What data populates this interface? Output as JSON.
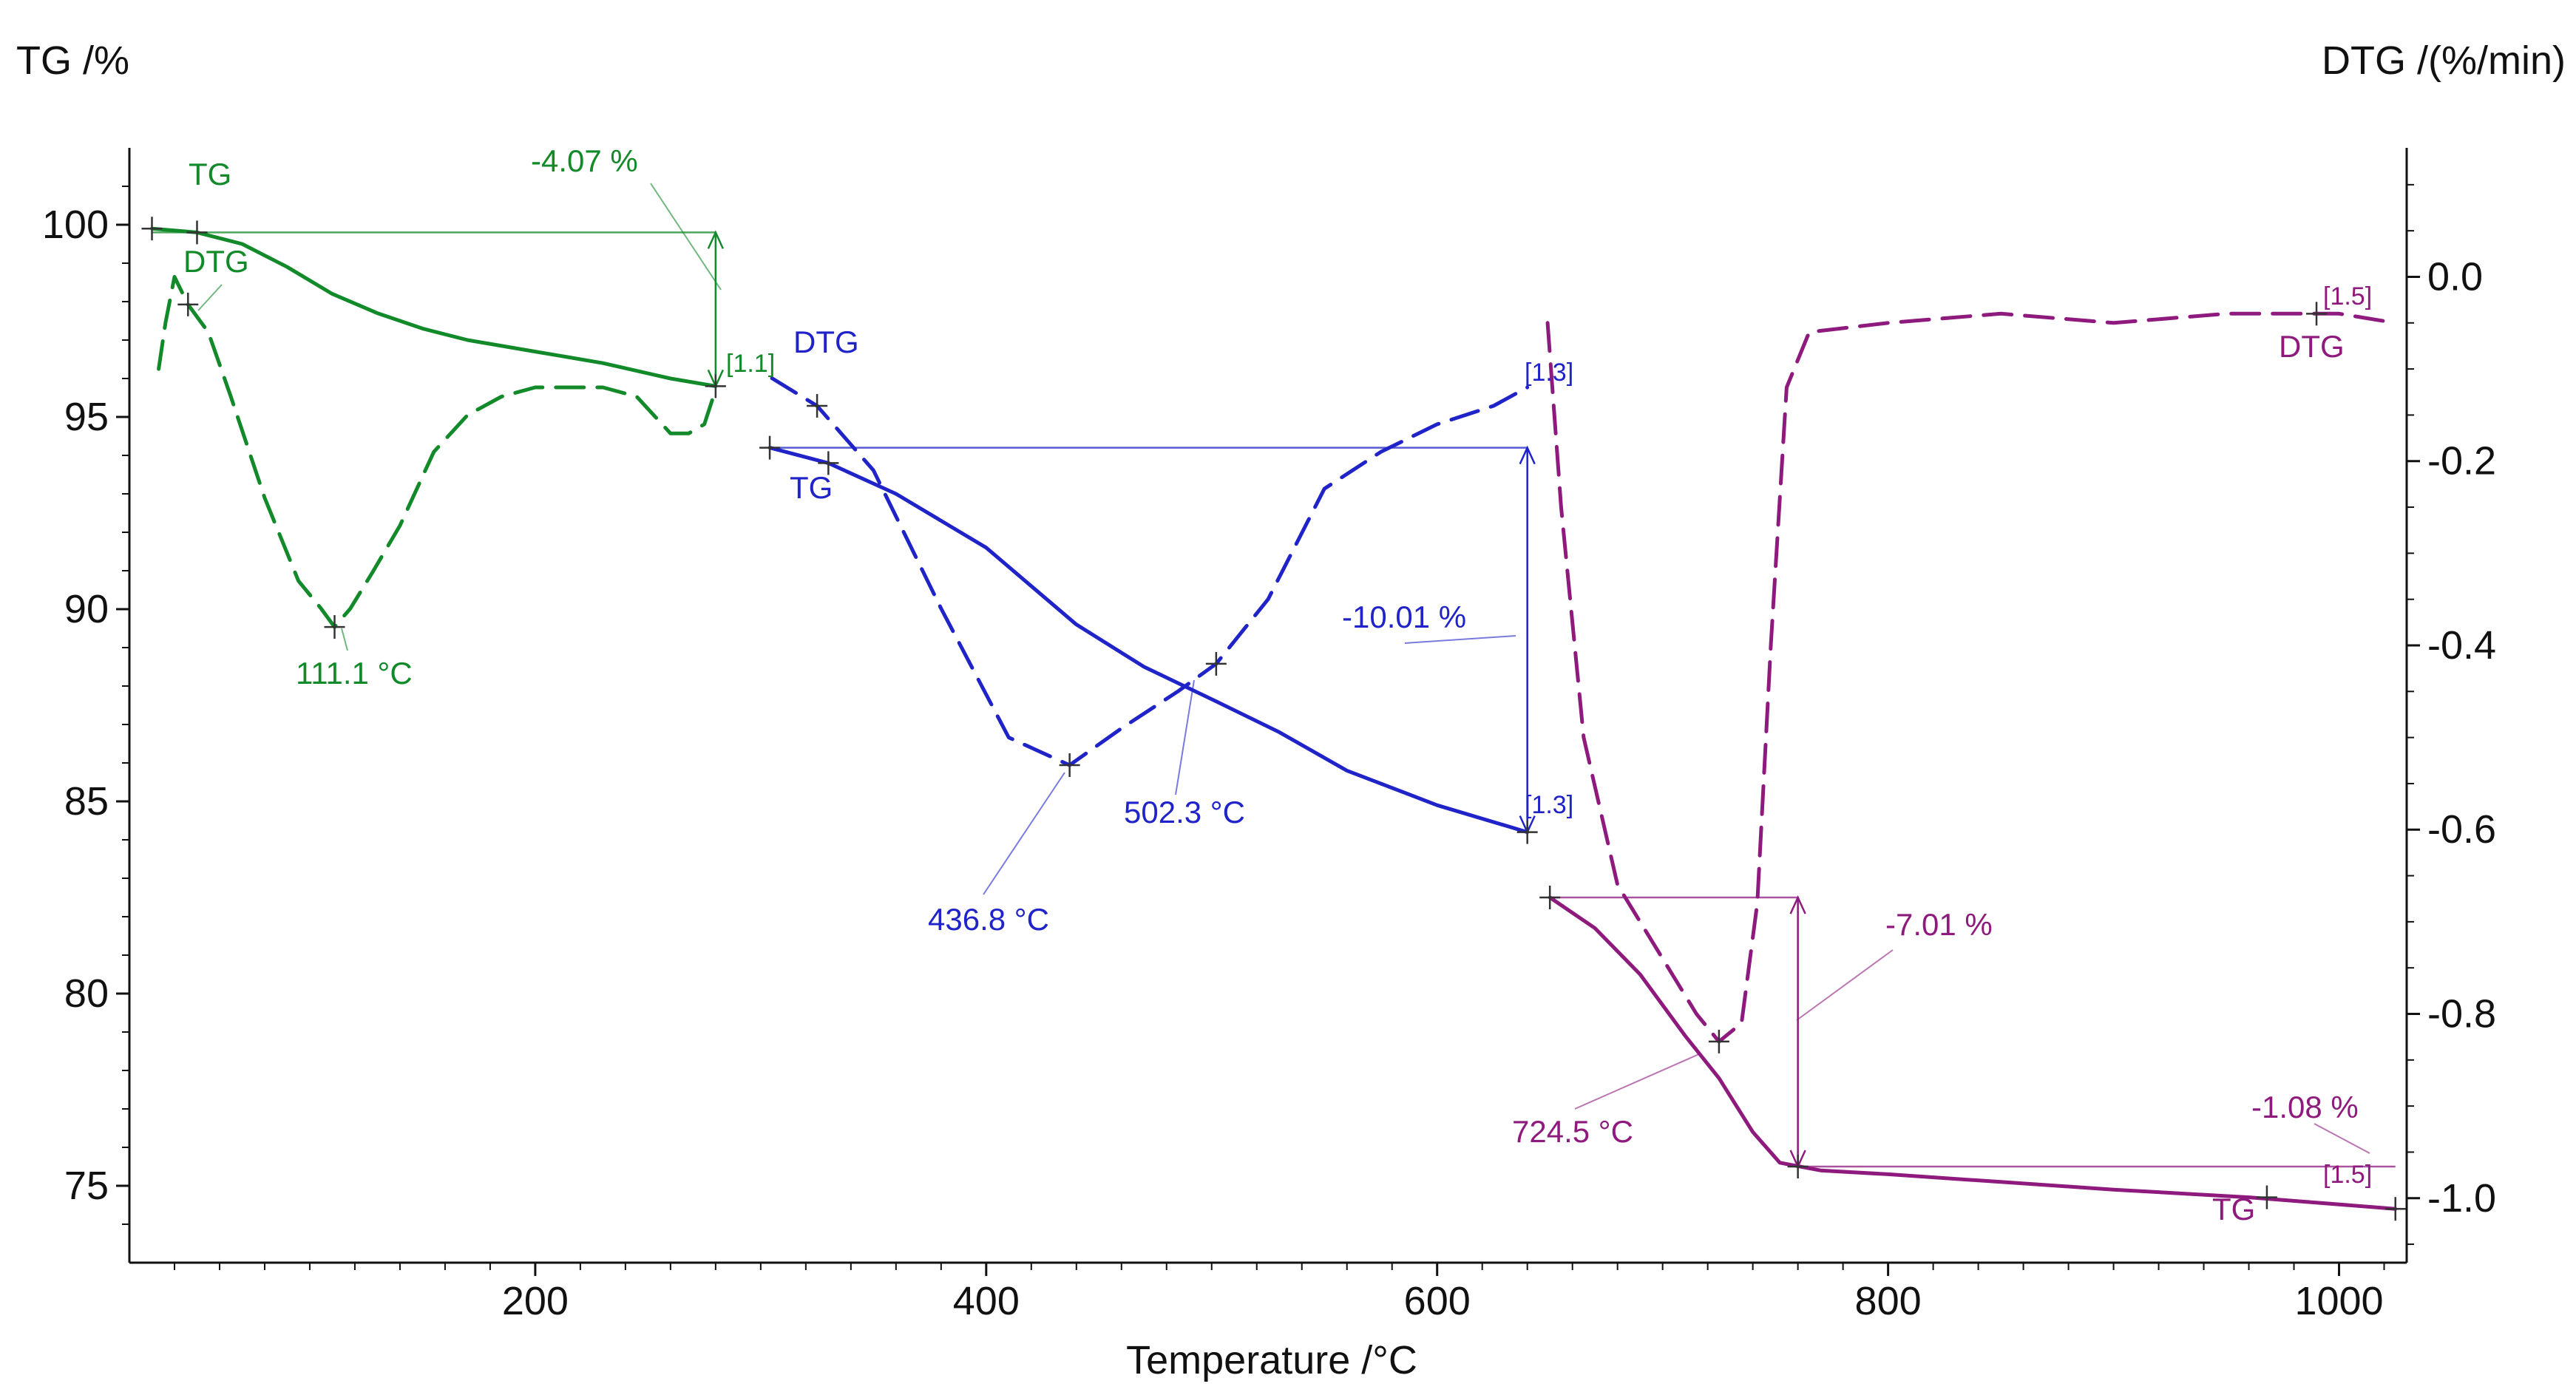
{
  "chart_data": {
    "type": "line",
    "xlabel": "Temperature /°C",
    "ylabel_left": "TG /%",
    "ylabel_right": "DTG /(%/min)",
    "xlim": [
      20,
      1030
    ],
    "ylim_left": [
      73,
      102
    ],
    "ylim_right": [
      -1.07,
      0.14
    ],
    "x_ticks": [
      "200",
      "400",
      "600",
      "800",
      "1000"
    ],
    "x_tick_values": [
      200,
      400,
      600,
      800,
      1000
    ],
    "y_left_ticks": [
      "75",
      "80",
      "85",
      "90",
      "95",
      "100"
    ],
    "y_left_tick_values": [
      75,
      80,
      85,
      90,
      95,
      100
    ],
    "y_right_ticks": [
      "0.0",
      "-0.2",
      "-0.4",
      "-0.6",
      "-0.8",
      "-1.0"
    ],
    "y_right_tick_values": [
      0.0,
      -0.2,
      -0.4,
      -0.6,
      -0.8,
      -1.0
    ],
    "colors": {
      "green": "#128a2a",
      "blue": "#1f23c8",
      "purple": "#8e1a7e",
      "gray": "#555555"
    },
    "series": [
      {
        "name": "TG segment 1",
        "axis": "left",
        "style": "solid",
        "color": "#128a2a",
        "x": [
          30,
          50,
          70,
          90,
          110,
          130,
          150,
          170,
          200,
          230,
          260,
          280
        ],
        "y": [
          99.9,
          99.8,
          99.5,
          98.9,
          98.2,
          97.7,
          97.3,
          97.0,
          96.7,
          96.4,
          96.0,
          95.8
        ]
      },
      {
        "name": "DTG segment 1",
        "axis": "right",
        "style": "dashed",
        "color": "#128a2a",
        "x": [
          33,
          36,
          40,
          46,
          55,
          65,
          80,
          95,
          105,
          111,
          118,
          128,
          140,
          155,
          170,
          185,
          200,
          215,
          230,
          245,
          260,
          268,
          275,
          279
        ],
        "y": [
          -0.1,
          -0.05,
          0.0,
          -0.03,
          -0.06,
          -0.13,
          -0.24,
          -0.33,
          -0.36,
          -0.38,
          -0.36,
          -0.32,
          -0.27,
          -0.19,
          -0.15,
          -0.13,
          -0.12,
          -0.12,
          -0.12,
          -0.13,
          -0.17,
          -0.17,
          -0.16,
          -0.13
        ]
      },
      {
        "name": "TG segment 2",
        "axis": "left",
        "style": "solid",
        "color": "#1f23c8",
        "x": [
          304,
          330,
          360,
          400,
          440,
          470,
          502,
          530,
          560,
          600,
          640
        ],
        "y": [
          94.2,
          93.8,
          93.0,
          91.6,
          89.6,
          88.5,
          87.6,
          86.8,
          85.8,
          84.9,
          84.2
        ]
      },
      {
        "name": "DTG segment 2",
        "axis": "right",
        "style": "dashed",
        "color": "#1f23c8",
        "x": [
          305,
          325,
          350,
          380,
          410,
          437,
          460,
          485,
          502,
          525,
          550,
          575,
          600,
          625,
          640
        ],
        "y": [
          -0.11,
          -0.14,
          -0.21,
          -0.36,
          -0.5,
          -0.53,
          -0.49,
          -0.45,
          -0.42,
          -0.35,
          -0.23,
          -0.19,
          -0.16,
          -0.14,
          -0.12
        ]
      },
      {
        "name": "TG segment 3",
        "axis": "left",
        "style": "solid",
        "color": "#8e1a7e",
        "x": [
          650,
          670,
          690,
          710,
          725,
          740,
          752,
          770,
          800,
          850,
          900,
          960,
          1025
        ],
        "y": [
          82.5,
          81.7,
          80.5,
          78.9,
          77.8,
          76.4,
          75.6,
          75.4,
          75.3,
          75.1,
          74.9,
          74.7,
          74.4
        ]
      },
      {
        "name": "DTG segment 3",
        "axis": "right",
        "style": "dashed",
        "color": "#8e1a7e",
        "x": [
          649,
          655,
          665,
          680,
          700,
          715,
          725,
          735,
          742,
          748,
          755,
          765,
          800,
          850,
          900,
          950,
          1000,
          1025
        ],
        "y": [
          -0.05,
          -0.25,
          -0.5,
          -0.66,
          -0.74,
          -0.8,
          -0.83,
          -0.81,
          -0.68,
          -0.4,
          -0.12,
          -0.06,
          -0.05,
          -0.04,
          -0.05,
          -0.04,
          -0.04,
          -0.05
        ]
      }
    ],
    "annotations": [
      {
        "text": "TG",
        "color": "#128a2a"
      },
      {
        "text": "DTG",
        "color": "#128a2a"
      },
      {
        "text": "-4.07 %",
        "color": "#128a2a"
      },
      {
        "text": "111.1 °C",
        "color": "#128a2a"
      },
      {
        "text": "[1.1]",
        "color": "#128a2a"
      },
      {
        "text": "DTG",
        "color": "#1f23c8"
      },
      {
        "text": "TG",
        "color": "#1f23c8"
      },
      {
        "text": "[1.3]",
        "color": "#1f23c8"
      },
      {
        "text": "-10.01 %",
        "color": "#1f23c8"
      },
      {
        "text": "502.3 °C",
        "color": "#1f23c8"
      },
      {
        "text": "436.8 °C",
        "color": "#1f23c8"
      },
      {
        "text": "[1.3]",
        "color": "#1f23c8"
      },
      {
        "text": "[1.5]",
        "color": "#8e1a7e"
      },
      {
        "text": "DTG",
        "color": "#8e1a7e"
      },
      {
        "text": "-7.01 %",
        "color": "#8e1a7e"
      },
      {
        "text": "724.5 °C",
        "color": "#8e1a7e"
      },
      {
        "text": "-1.08 %",
        "color": "#8e1a7e"
      },
      {
        "text": "[1.5]",
        "color": "#8e1a7e"
      },
      {
        "text": "TG",
        "color": "#8e1a7e"
      }
    ]
  }
}
